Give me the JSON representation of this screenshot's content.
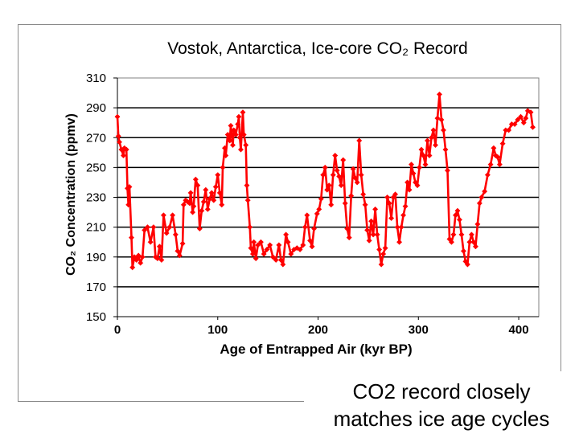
{
  "chart_data": {
    "type": "line",
    "title": "Vostok, Antarctica, Ice-core CO₂ Record",
    "xlabel": "Age of Entrapped Air (kyr BP)",
    "ylabel": "CO₂ Concentration (ppmv)",
    "xlim": [
      0,
      420
    ],
    "ylim": [
      150,
      310
    ],
    "x_ticks": [
      0,
      100,
      200,
      300,
      400
    ],
    "y_ticks": [
      150,
      170,
      190,
      210,
      230,
      250,
      270,
      290,
      310
    ],
    "grid": "horizontal",
    "legend": "none",
    "colors": {
      "series": "#ff0000",
      "plot_background": "#ffffff",
      "gridline": "#000000"
    },
    "marker": "diamond",
    "series": [
      {
        "values": [
          [
            0,
            284
          ],
          [
            1,
            271
          ],
          [
            2,
            267
          ],
          [
            4,
            262
          ],
          [
            6,
            258
          ],
          [
            7,
            263
          ],
          [
            9,
            262
          ],
          [
            10,
            236
          ],
          [
            11,
            225
          ],
          [
            12,
            237
          ],
          [
            14,
            203
          ],
          [
            15,
            183
          ],
          [
            17,
            190
          ],
          [
            19,
            188
          ],
          [
            21,
            191
          ],
          [
            23,
            186
          ],
          [
            25,
            190
          ],
          [
            27,
            208
          ],
          [
            30,
            210
          ],
          [
            33,
            200
          ],
          [
            36,
            210
          ],
          [
            38,
            190
          ],
          [
            40,
            189
          ],
          [
            42,
            197
          ],
          [
            44,
            188
          ],
          [
            46,
            218
          ],
          [
            49,
            206
          ],
          [
            52,
            210
          ],
          [
            55,
            218
          ],
          [
            58,
            205
          ],
          [
            60,
            194
          ],
          [
            62,
            191
          ],
          [
            65,
            199
          ],
          [
            66,
            225
          ],
          [
            68,
            228
          ],
          [
            70,
            227
          ],
          [
            72,
            226
          ],
          [
            73,
            233
          ],
          [
            75,
            220
          ],
          [
            76,
            224
          ],
          [
            78,
            242
          ],
          [
            80,
            238
          ],
          [
            82,
            209
          ],
          [
            84,
            221
          ],
          [
            86,
            227
          ],
          [
            88,
            235
          ],
          [
            90,
            222
          ],
          [
            92,
            229
          ],
          [
            94,
            233
          ],
          [
            96,
            228
          ],
          [
            98,
            237
          ],
          [
            100,
            245
          ],
          [
            102,
            233
          ],
          [
            104,
            225
          ],
          [
            105,
            250
          ],
          [
            107,
            263
          ],
          [
            108,
            258
          ],
          [
            110,
            272
          ],
          [
            112,
            268
          ],
          [
            113,
            278
          ],
          [
            115,
            265
          ],
          [
            116,
            275
          ],
          [
            118,
            272
          ],
          [
            120,
            279
          ],
          [
            121,
            284
          ],
          [
            122,
            270
          ],
          [
            123,
            262
          ],
          [
            125,
            287
          ],
          [
            126,
            272
          ],
          [
            128,
            265
          ],
          [
            129,
            238
          ],
          [
            130,
            228
          ],
          [
            132,
            210
          ],
          [
            133,
            196
          ],
          [
            135,
            192
          ],
          [
            136,
            200
          ],
          [
            138,
            189
          ],
          [
            140,
            198
          ],
          [
            143,
            200
          ],
          [
            146,
            192
          ],
          [
            149,
            195
          ],
          [
            152,
            198
          ],
          [
            155,
            190
          ],
          [
            158,
            188
          ],
          [
            161,
            198
          ],
          [
            163,
            188
          ],
          [
            165,
            185
          ],
          [
            168,
            205
          ],
          [
            170,
            200
          ],
          [
            173,
            192
          ],
          [
            176,
            195
          ],
          [
            179,
            196
          ],
          [
            182,
            195
          ],
          [
            185,
            198
          ],
          [
            187,
            210
          ],
          [
            189,
            218
          ],
          [
            192,
            201
          ],
          [
            194,
            197
          ],
          [
            196,
            209
          ],
          [
            199,
            219
          ],
          [
            201,
            222
          ],
          [
            203,
            229
          ],
          [
            205,
            245
          ],
          [
            207,
            250
          ],
          [
            209,
            235
          ],
          [
            211,
            238
          ],
          [
            213,
            225
          ],
          [
            215,
            245
          ],
          [
            217,
            258
          ],
          [
            219,
            248
          ],
          [
            221,
            244
          ],
          [
            223,
            238
          ],
          [
            225,
            255
          ],
          [
            227,
            226
          ],
          [
            229,
            209
          ],
          [
            231,
            203
          ],
          [
            233,
            231
          ],
          [
            235,
            249
          ],
          [
            237,
            243
          ],
          [
            239,
            240
          ],
          [
            241,
            268
          ],
          [
            243,
            245
          ],
          [
            245,
            232
          ],
          [
            247,
            225
          ],
          [
            249,
            208
          ],
          [
            251,
            201
          ],
          [
            253,
            214
          ],
          [
            255,
            205
          ],
          [
            257,
            222
          ],
          [
            259,
            205
          ],
          [
            261,
            195
          ],
          [
            263,
            185
          ],
          [
            265,
            192
          ],
          [
            267,
            196
          ],
          [
            269,
            230
          ],
          [
            271,
            226
          ],
          [
            273,
            216
          ],
          [
            275,
            230
          ],
          [
            277,
            232
          ],
          [
            279,
            210
          ],
          [
            281,
            200
          ],
          [
            283,
            210
          ],
          [
            285,
            218
          ],
          [
            287,
            224
          ],
          [
            289,
            240
          ],
          [
            291,
            235
          ],
          [
            293,
            252
          ],
          [
            295,
            246
          ],
          [
            297,
            240
          ],
          [
            299,
            238
          ],
          [
            301,
            250
          ],
          [
            303,
            262
          ],
          [
            305,
            258
          ],
          [
            307,
            252
          ],
          [
            309,
            268
          ],
          [
            311,
            258
          ],
          [
            313,
            270
          ],
          [
            315,
            275
          ],
          [
            317,
            265
          ],
          [
            319,
            283
          ],
          [
            321,
            299
          ],
          [
            323,
            282
          ],
          [
            325,
            275
          ],
          [
            327,
            262
          ],
          [
            329,
            248
          ],
          [
            331,
            202
          ],
          [
            333,
            200
          ],
          [
            335,
            205
          ],
          [
            337,
            218
          ],
          [
            339,
            221
          ],
          [
            341,
            215
          ],
          [
            343,
            205
          ],
          [
            345,
            194
          ],
          [
            347,
            187
          ],
          [
            349,
            185
          ],
          [
            351,
            200
          ],
          [
            353,
            205
          ],
          [
            355,
            200
          ],
          [
            357,
            197
          ],
          [
            359,
            212
          ],
          [
            361,
            226
          ],
          [
            363,
            230
          ],
          [
            366,
            234
          ],
          [
            369,
            245
          ],
          [
            372,
            252
          ],
          [
            375,
            263
          ],
          [
            377,
            258
          ],
          [
            379,
            257
          ],
          [
            381,
            252
          ],
          [
            384,
            266
          ],
          [
            387,
            275
          ],
          [
            390,
            275
          ],
          [
            393,
            279
          ],
          [
            396,
            279
          ],
          [
            399,
            282
          ],
          [
            402,
            284
          ],
          [
            405,
            280
          ],
          [
            407,
            283
          ],
          [
            409,
            288
          ],
          [
            412,
            287
          ],
          [
            414,
            277
          ]
        ]
      }
    ]
  },
  "caption": {
    "line1": "CO2 record closely",
    "line2": "matches ice age cycles"
  }
}
